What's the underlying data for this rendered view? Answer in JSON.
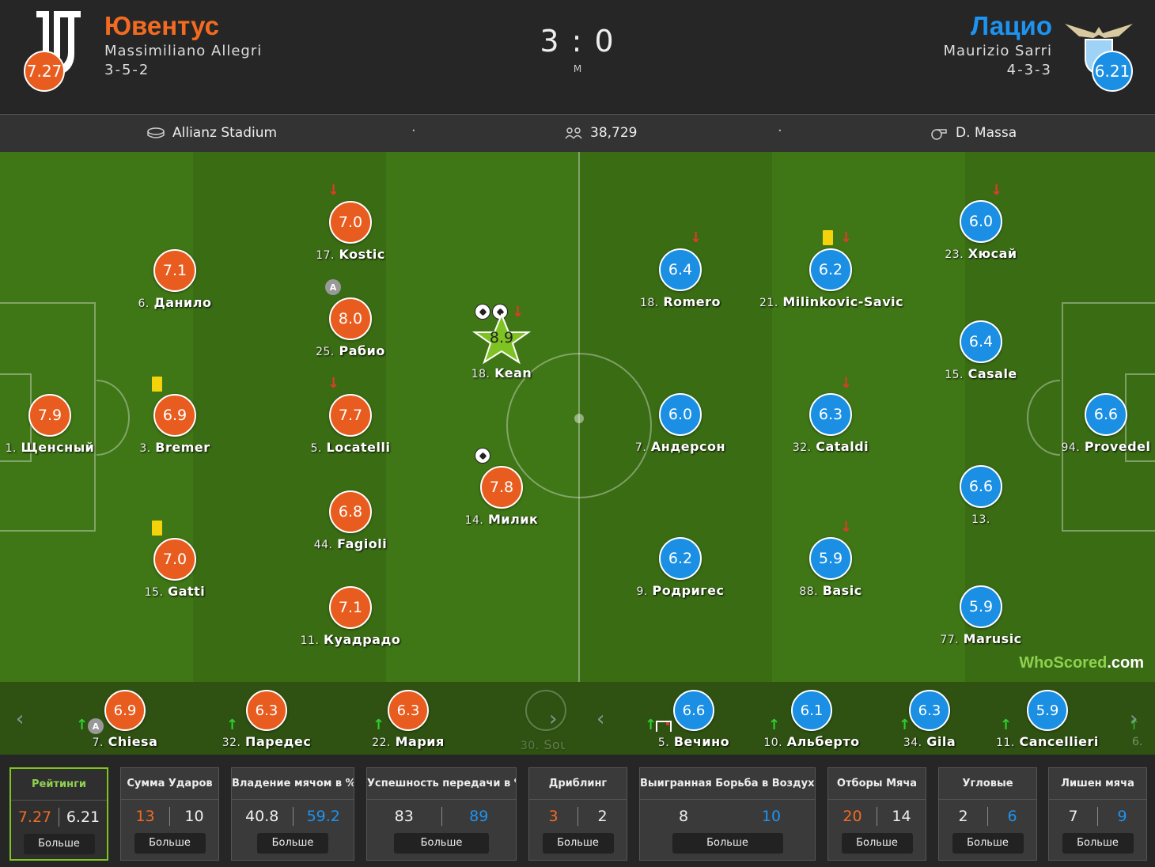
{
  "header": {
    "home_name": "Ювентус",
    "home_coach": "Massimiliano Allegri",
    "home_formation": "3-5-2",
    "home_rating": "7.27",
    "away_name": "Лацио",
    "away_coach": "Maurizio Sarri",
    "away_formation": "4-3-3",
    "away_rating": "6.21",
    "score": "3 : 0",
    "status": "M"
  },
  "info": {
    "stadium": "Allianz Stadium",
    "attendance": "38,729",
    "referee": "D. Massa"
  },
  "colors": {
    "home": "#e85d1f",
    "away": "#1a8fe3",
    "accent": "#8fd14f"
  },
  "home_players": [
    {
      "num": "1.",
      "name": "Щенсный",
      "rating": "7.9"
    },
    {
      "num": "6.",
      "name": "Данило",
      "rating": "7.1"
    },
    {
      "num": "3.",
      "name": "Bremer",
      "rating": "6.9"
    },
    {
      "num": "15.",
      "name": "Gatti",
      "rating": "7.0"
    },
    {
      "num": "17.",
      "name": "Kostic",
      "rating": "7.0"
    },
    {
      "num": "25.",
      "name": "Рабио",
      "rating": "8.0"
    },
    {
      "num": "5.",
      "name": "Locatelli",
      "rating": "7.7"
    },
    {
      "num": "44.",
      "name": "Fagioli",
      "rating": "6.8"
    },
    {
      "num": "11.",
      "name": "Куадрадо",
      "rating": "7.1"
    },
    {
      "num": "18.",
      "name": "Kean",
      "rating": "8.9"
    },
    {
      "num": "14.",
      "name": "Милик",
      "rating": "7.8"
    }
  ],
  "away_players": [
    {
      "num": "18.",
      "name": "Romero",
      "rating": "6.4"
    },
    {
      "num": "7.",
      "name": "Андерсон",
      "rating": "6.0"
    },
    {
      "num": "9.",
      "name": "Родригес",
      "rating": "6.2"
    },
    {
      "num": "21.",
      "name": "Milinkovic-Savic",
      "rating": "6.2"
    },
    {
      "num": "32.",
      "name": "Cataldi",
      "rating": "6.3"
    },
    {
      "num": "88.",
      "name": "Basic",
      "rating": "5.9"
    },
    {
      "num": "23.",
      "name": "Хюсай",
      "rating": "6.0"
    },
    {
      "num": "15.",
      "name": "Casale",
      "rating": "6.4"
    },
    {
      "num": "13.",
      "name": "",
      "rating": "6.6"
    },
    {
      "num": "77.",
      "name": "Marusic",
      "rating": "5.9"
    },
    {
      "num": "94.",
      "name": "Provedel",
      "rating": "6.6"
    }
  ],
  "home_subs": [
    {
      "num": "7.",
      "name": "Chiesa",
      "rating": "6.9"
    },
    {
      "num": "32.",
      "name": "Паредес",
      "rating": "6.3"
    },
    {
      "num": "22.",
      "name": "Мария",
      "rating": "6.3"
    },
    {
      "num": "30.",
      "name": "Soule"
    }
  ],
  "away_subs": [
    {
      "num": "5.",
      "name": "Вечино",
      "rating": "6.6"
    },
    {
      "num": "10.",
      "name": "Альберто",
      "rating": "6.1"
    },
    {
      "num": "34.",
      "name": "Gila",
      "rating": "6.3"
    },
    {
      "num": "11.",
      "name": "Cancellieri",
      "rating": "5.9"
    },
    {
      "num": "6."
    }
  ],
  "captain_label": "A",
  "watermark": {
    "a": "WhoScored",
    "b": ".com"
  },
  "stats": [
    {
      "title": "Рейтинги",
      "home": "7.27",
      "away": "6.21",
      "more": "Больше",
      "hl": "home"
    },
    {
      "title": "Сумма Ударов",
      "home": "13",
      "away": "10",
      "more": "Больше",
      "hl": "home"
    },
    {
      "title": "Владение мячом в %",
      "home": "40.8",
      "away": "59.2",
      "more": "Больше",
      "hl": "away"
    },
    {
      "title": "Успешность передачи в %",
      "home": "83",
      "away": "89",
      "more": "Больше",
      "hl": "away"
    },
    {
      "title": "Дриблинг",
      "home": "3",
      "away": "2",
      "more": "Больше",
      "hl": "home"
    },
    {
      "title": "Выигранная Борьба в Воздухе",
      "home": "8",
      "away": "10",
      "more": "Больше",
      "hl": "away"
    },
    {
      "title": "Отборы Мяча",
      "home": "20",
      "away": "14",
      "more": "Больше",
      "hl": "home"
    },
    {
      "title": "Угловые",
      "home": "2",
      "away": "6",
      "more": "Больше",
      "hl": "away"
    },
    {
      "title": "Лишен мяча",
      "home": "7",
      "away": "9",
      "more": "Больше",
      "hl": "away"
    }
  ]
}
